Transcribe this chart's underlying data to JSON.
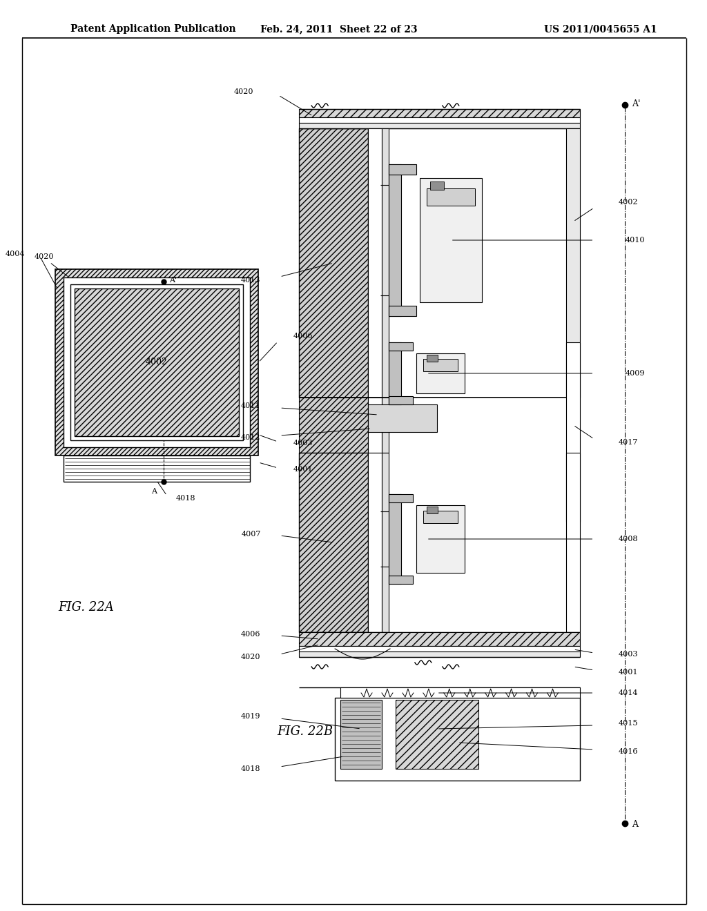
{
  "title_left": "Patent Application Publication",
  "title_center": "Feb. 24, 2011  Sheet 22 of 23",
  "title_right": "US 2011/0045655 A1",
  "fig_22a_label": "FIG. 22A",
  "fig_22b_label": "FIG. 22B",
  "background_color": "#ffffff"
}
